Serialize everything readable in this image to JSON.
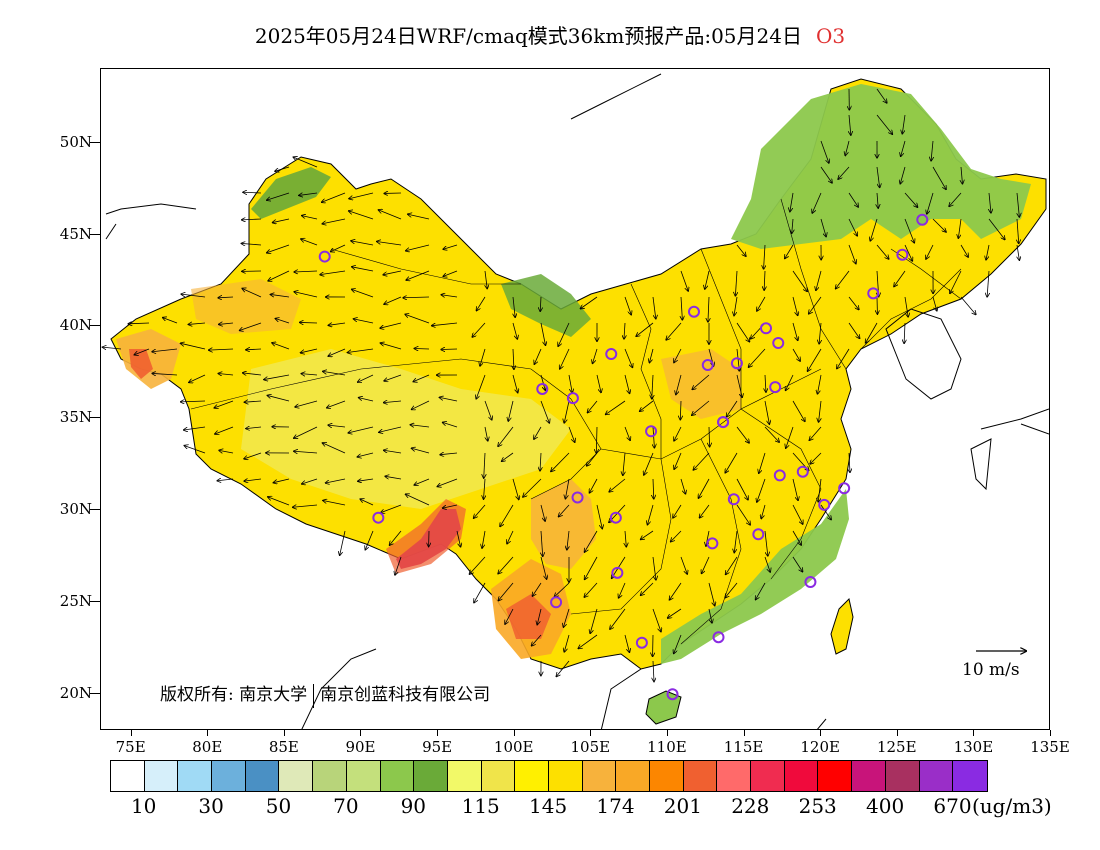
{
  "title": {
    "main": "2025年05月24日WRF/cmaq模式36km预报产品:05月24日",
    "pollutant": "O3"
  },
  "axes": {
    "lat_labels": [
      "50N",
      "45N",
      "40N",
      "35N",
      "30N",
      "25N",
      "20N"
    ],
    "lat_values": [
      50,
      45,
      40,
      35,
      30,
      25,
      20
    ],
    "lon_labels": [
      "75E",
      "80E",
      "85E",
      "90E",
      "95E",
      "100E",
      "105E",
      "110E",
      "115E",
      "120E",
      "125E",
      "130E",
      "135E"
    ],
    "lon_values": [
      75,
      80,
      85,
      90,
      95,
      100,
      105,
      110,
      115,
      120,
      125,
      130,
      135
    ],
    "lon_range": [
      73,
      135
    ],
    "lat_range": [
      18,
      54
    ]
  },
  "colorbar": {
    "colors": [
      "#ffffff",
      "#d6effa",
      "#a0daf5",
      "#6cb0dc",
      "#4a90c4",
      "#dfe9b8",
      "#b8d47a",
      "#c4e07c",
      "#8cc84c",
      "#6aaa38",
      "#f2f968",
      "#f0e44a",
      "#fff000",
      "#fde000",
      "#f7b23c",
      "#f9a826",
      "#fc8600",
      "#f06030",
      "#ff6a6a",
      "#f02c50",
      "#f00a3c",
      "#ff0000",
      "#c8147a",
      "#a83060",
      "#9a2ec8",
      "#8a2be2"
    ],
    "labels": [
      "10",
      "30",
      "50",
      "70",
      "90",
      "115",
      "145",
      "174",
      "201",
      "228",
      "253",
      "400",
      "670"
    ],
    "unit": "(ug/m3)"
  },
  "copyright": {
    "part1": "版权所有: 南京大学",
    "part2": "南京创蓝科技有限公司"
  },
  "wind_legend": {
    "label": "10 m/s"
  },
  "stations": [
    [
      87.6,
      43.8
    ],
    [
      91.1,
      29.6
    ],
    [
      101.8,
      36.6
    ],
    [
      103.8,
      36.1
    ],
    [
      106.3,
      38.5
    ],
    [
      104.1,
      30.7
    ],
    [
      106.6,
      29.6
    ],
    [
      106.7,
      26.6
    ],
    [
      102.7,
      25.0
    ],
    [
      108.3,
      22.8
    ],
    [
      110.3,
      20.0
    ],
    [
      111.7,
      40.8
    ],
    [
      112.6,
      37.9
    ],
    [
      113.6,
      34.8
    ],
    [
      114.5,
      38.0
    ],
    [
      116.4,
      39.9
    ],
    [
      117.2,
      39.1
    ],
    [
      117.0,
      36.7
    ],
    [
      113.6,
      34.8
    ],
    [
      112.9,
      28.2
    ],
    [
      114.3,
      30.6
    ],
    [
      115.9,
      28.7
    ],
    [
      117.3,
      31.9
    ],
    [
      118.8,
      32.1
    ],
    [
      120.2,
      30.3
    ],
    [
      121.5,
      31.2
    ],
    [
      119.3,
      26.1
    ],
    [
      113.3,
      23.1
    ],
    [
      123.4,
      41.8
    ],
    [
      125.3,
      43.9
    ],
    [
      126.6,
      45.8
    ],
    [
      108.9,
      34.3
    ]
  ]
}
